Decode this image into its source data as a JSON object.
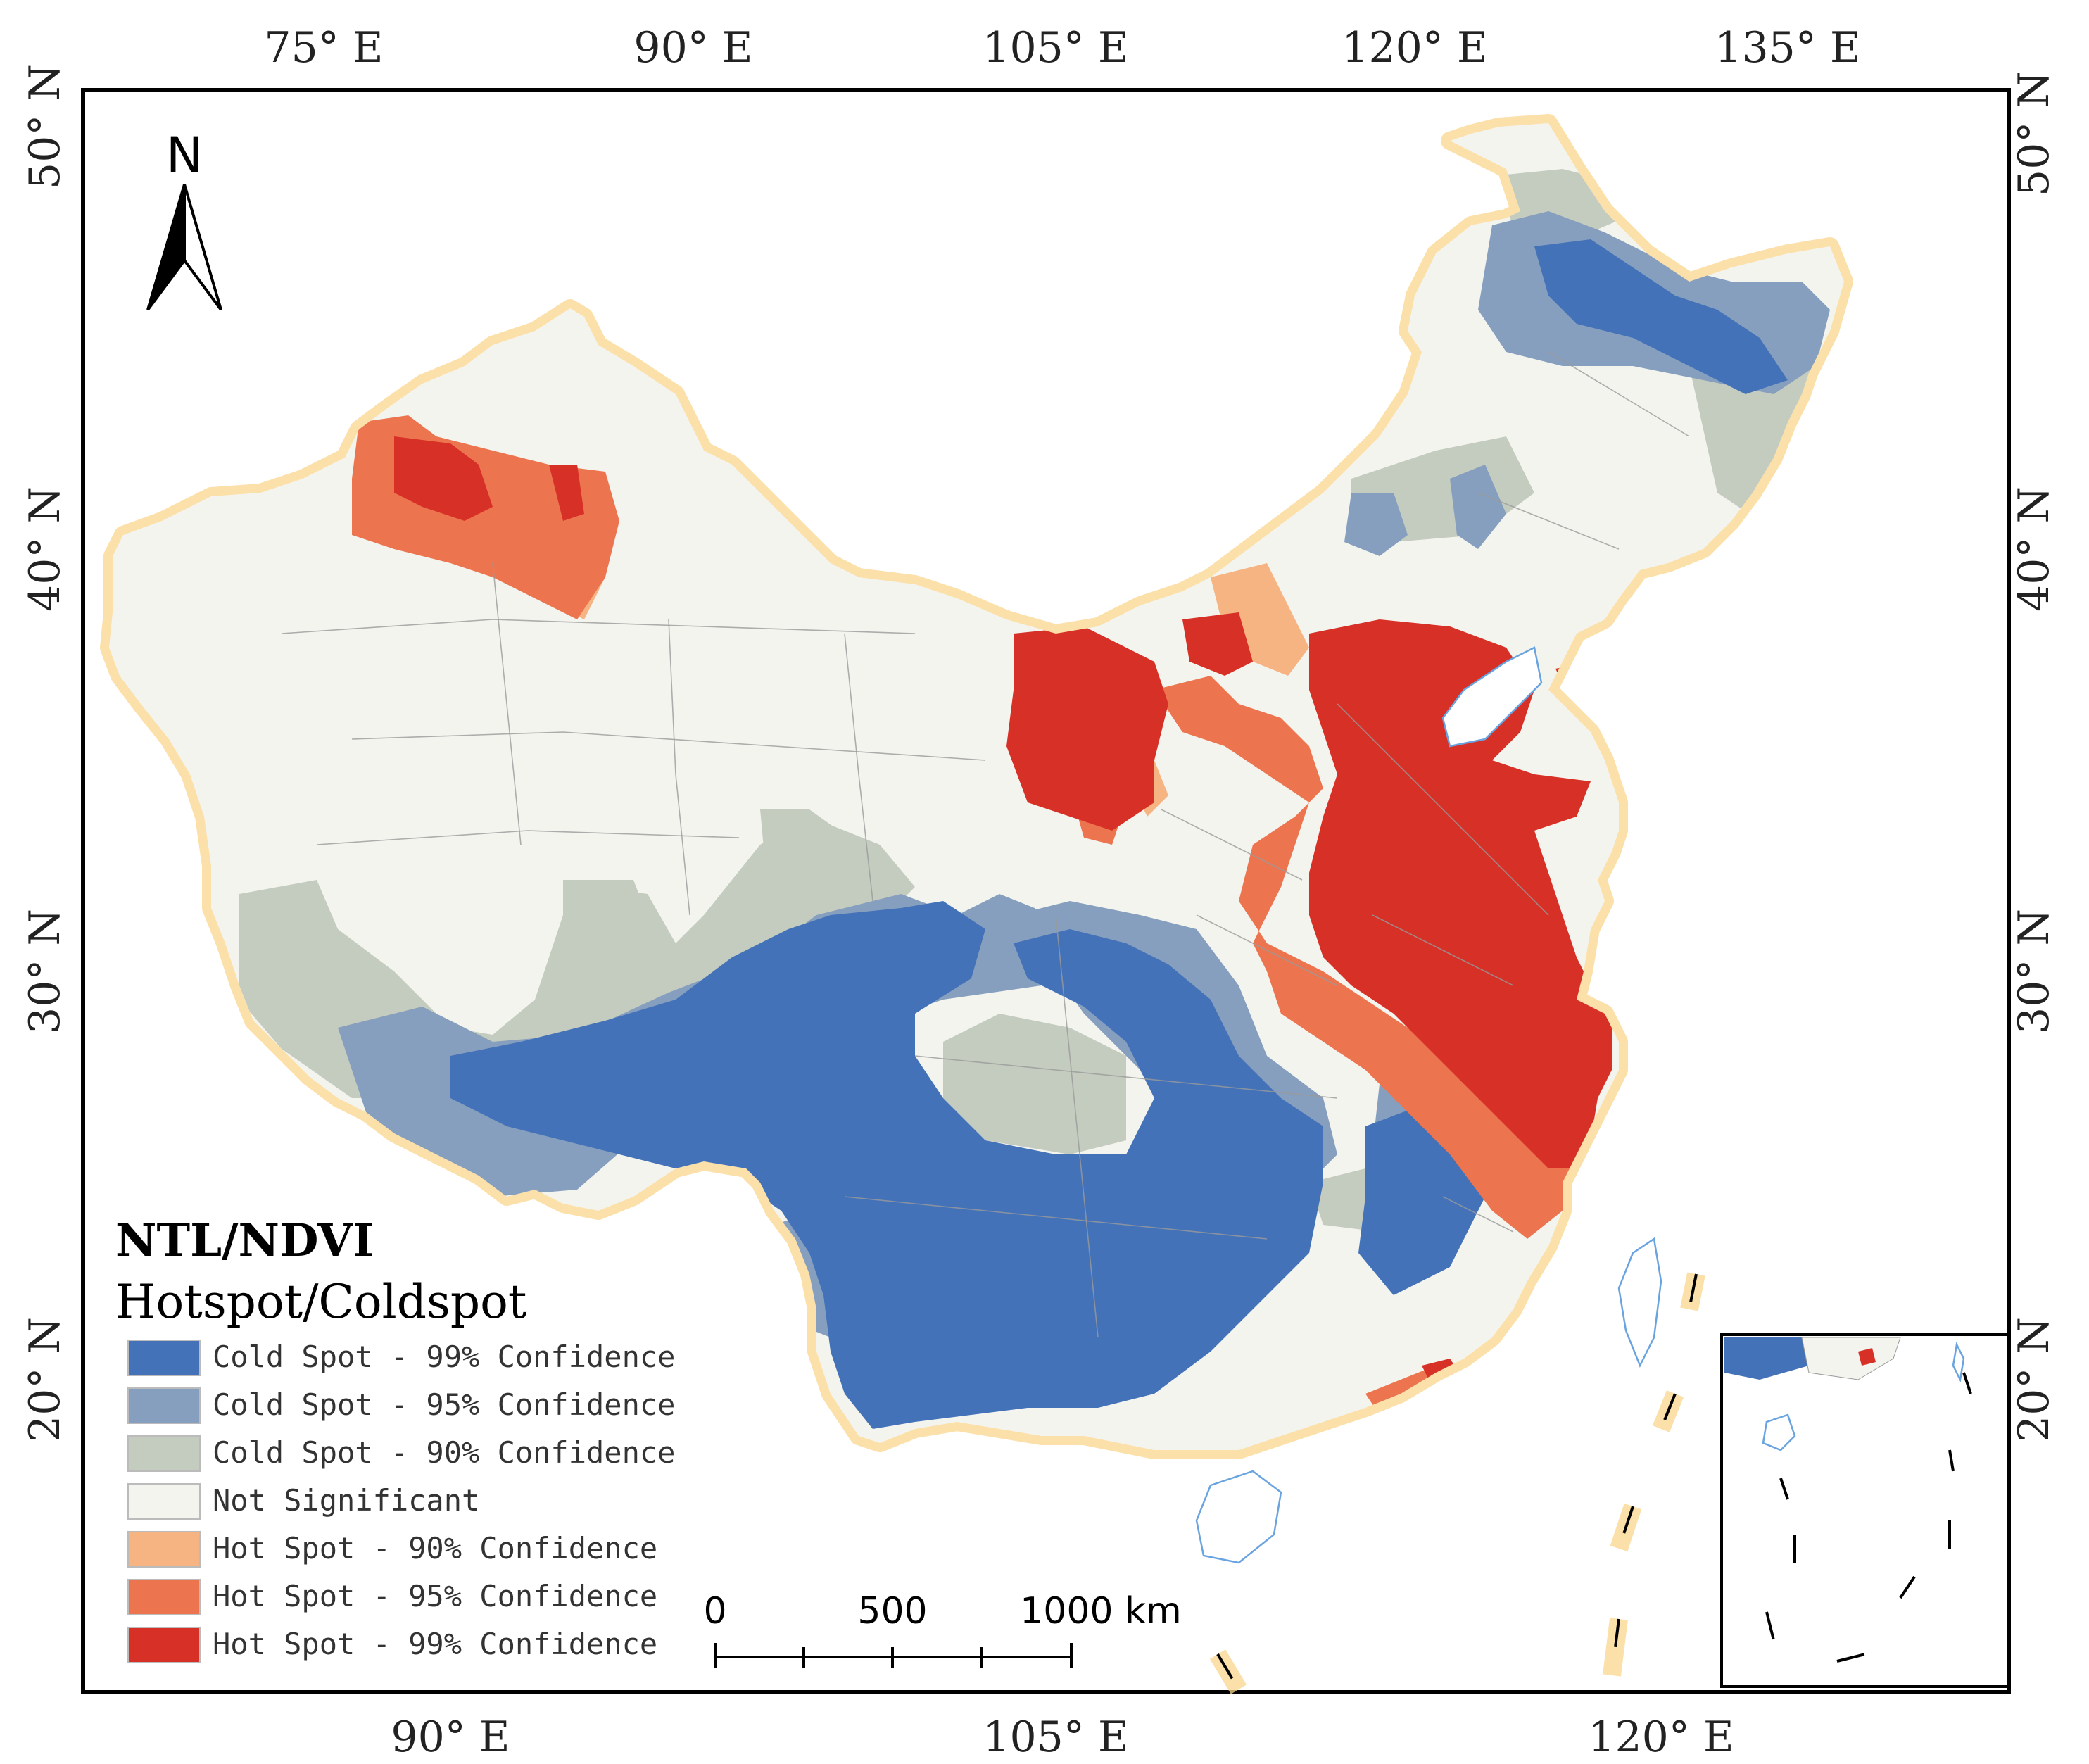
{
  "graticule": {
    "top": [
      "75° E",
      "90° E",
      "105° E",
      "120° E",
      "135° E"
    ],
    "bottom": [
      "90° E",
      "105° E",
      "120° E"
    ],
    "left": [
      "50° N",
      "40° N",
      "30° N",
      "20° N"
    ],
    "right": [
      "50° N",
      "40° N",
      "30° N",
      "20° N"
    ]
  },
  "north_arrow": {
    "label": "N"
  },
  "legend": {
    "title": "NTL/NDVI",
    "subtitle": "Hotspot/Coldspot",
    "items": [
      {
        "label": "Cold Spot - 99% Confidence",
        "color": "#4472b8"
      },
      {
        "label": "Cold Spot - 95% Confidence",
        "color": "#869fbe"
      },
      {
        "label": "Cold Spot - 90% Confidence",
        "color": "#c4cbbf"
      },
      {
        "label": "Not Significant",
        "color": "#f4f4ef"
      },
      {
        "label": "Hot Spot - 90% Confidence",
        "color": "#f6b482"
      },
      {
        "label": "Hot Spot - 95% Confidence",
        "color": "#ec7550"
      },
      {
        "label": "Hot Spot - 99% Confidence",
        "color": "#d73027"
      }
    ]
  },
  "scale_bar": {
    "labels": [
      "0",
      "500",
      "1000 km"
    ]
  }
}
